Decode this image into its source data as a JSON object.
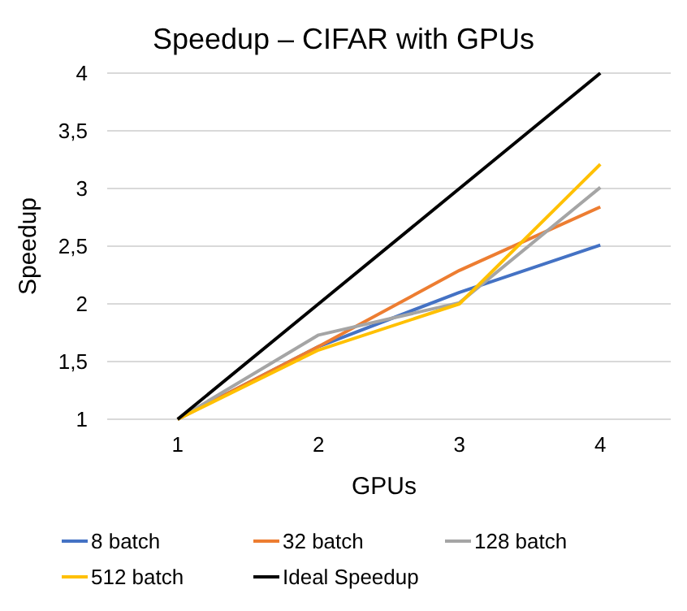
{
  "chart_data": {
    "type": "line",
    "title": "Speedup – CIFAR with GPUs",
    "xlabel": "GPUs",
    "ylabel": "Speedup",
    "categories": [
      "1",
      "2",
      "3",
      "4"
    ],
    "series": [
      {
        "name": "8 batch",
        "color": "#4472c4",
        "values": [
          1,
          1.63,
          2.1,
          2.51
        ]
      },
      {
        "name": "32 batch",
        "color": "#ed7d31",
        "values": [
          1,
          1.63,
          2.29,
          2.84
        ]
      },
      {
        "name": "128 batch",
        "color": "#a5a5a5",
        "values": [
          1,
          1.73,
          2.01,
          3.01
        ]
      },
      {
        "name": "512 batch",
        "color": "#ffc000",
        "values": [
          1,
          1.6,
          2,
          3.21
        ]
      },
      {
        "name": "Ideal Speedup",
        "color": "#000000",
        "values": [
          1,
          2,
          3,
          4
        ]
      }
    ],
    "ylim": [
      1,
      4
    ],
    "yticks": [
      1,
      {
        "value": 1.5,
        "label": "1,5"
      },
      2,
      {
        "value": 2.5,
        "label": "2,5"
      },
      3,
      {
        "value": 3.5,
        "label": "3,5"
      },
      4
    ],
    "grid": "y",
    "legend": "bottom",
    "marker": "none",
    "line_style": "solid"
  }
}
